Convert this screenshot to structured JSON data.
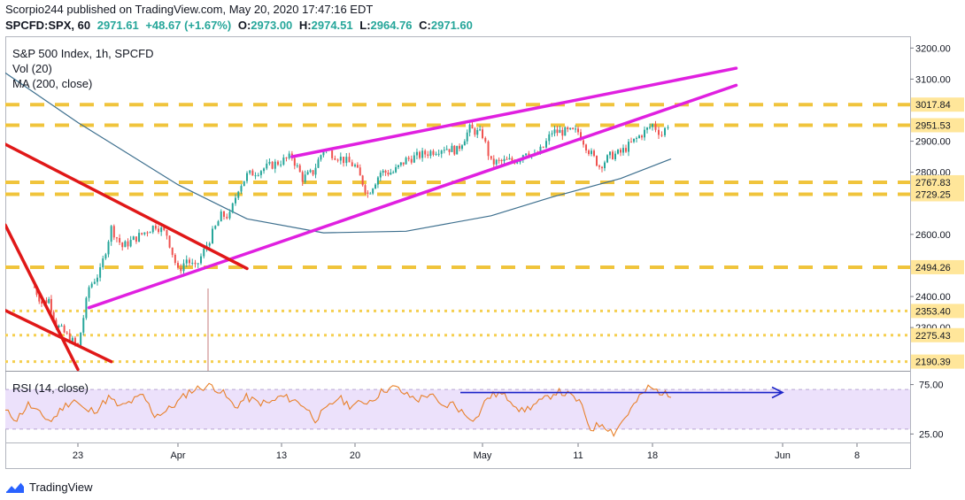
{
  "header": {
    "publisher_line": "Scorpio244 published on TradingView.com, May 20, 2020 17:47:16 EDT",
    "symbol": "SPCFD:SPX, 60",
    "last": "2971.61",
    "change": "+48.67 (+1.67%)",
    "open_label": "O:",
    "open": "2973.00",
    "high_label": "H:",
    "high": "2974.51",
    "low_label": "L:",
    "low": "2964.76",
    "close_label": "C:",
    "close": "2971.60"
  },
  "legend": {
    "title": "S&P 500 Index, 1h, SPCFD",
    "vol": "Vol (20)",
    "ma": "MA (200, close)",
    "rsi": "RSI (14, close)"
  },
  "footer": {
    "brand": "TradingView"
  },
  "colors": {
    "price_up": "#26a69a",
    "price_down": "#ef5350",
    "ma": "#3d6f8e",
    "channel": "#e020e0",
    "wedge": "#e01818",
    "level_dash": "#f0c43c",
    "level_dot": "#f5cf50",
    "rsi_line": "#e8802a",
    "rsi_band": "#ece1fb",
    "rsi_arrow": "#1a22c8"
  },
  "chart_data": {
    "type": "line",
    "title": "S&P 500 Index, 1h, SPCFD",
    "y_axis_ticks": [
      "3200.00",
      "3100.00",
      "2900.00",
      "2800.00",
      "2600.00",
      "2400.00",
      "2300.00"
    ],
    "x_axis_ticks": [
      "23",
      "Apr",
      "13",
      "20",
      "May",
      "11",
      "18",
      "Jun",
      "8"
    ],
    "ylim": [
      2175,
      3235
    ],
    "level_labels": [
      {
        "value": 3017.84,
        "label": "3017.84",
        "style": "dash"
      },
      {
        "value": 2951.53,
        "label": "2951.53",
        "style": "dash"
      },
      {
        "value": 2767.83,
        "label": "2767.83",
        "style": "dash"
      },
      {
        "value": 2729.25,
        "label": "2729.25",
        "style": "dash"
      },
      {
        "value": 2494.26,
        "label": "2494.26",
        "style": "dash"
      },
      {
        "value": 2353.4,
        "label": "2353.40",
        "style": "dot"
      },
      {
        "value": 2275.43,
        "label": "2275.43",
        "style": "dot"
      },
      {
        "value": 2190.39,
        "label": "2190.39",
        "style": "dot"
      }
    ],
    "price_series": [
      [
        "Mar 17",
        2430
      ],
      [
        "Mar 18",
        2380
      ],
      [
        "Mar 19",
        2390
      ],
      [
        "Mar 20",
        2310
      ],
      [
        "Mar 23",
        2237
      ],
      [
        "Mar 24",
        2430
      ],
      [
        "Mar 25",
        2480
      ],
      [
        "Mar 26",
        2620
      ],
      [
        "Mar 27",
        2560
      ],
      [
        "Mar 30",
        2630
      ],
      [
        "Mar 31",
        2600
      ],
      [
        "Apr 1",
        2480
      ],
      [
        "Apr 2",
        2520
      ],
      [
        "Apr 3",
        2490
      ],
      [
        "Apr 6",
        2660
      ],
      [
        "Apr 7",
        2660
      ],
      [
        "Apr 8",
        2750
      ],
      [
        "Apr 9",
        2790
      ],
      [
        "Apr 14",
        2850
      ],
      [
        "Apr 15",
        2780
      ],
      [
        "Apr 16",
        2800
      ],
      [
        "Apr 17",
        2875
      ],
      [
        "Apr 20",
        2820
      ],
      [
        "Apr 21",
        2730
      ],
      [
        "Apr 22",
        2800
      ],
      [
        "Apr 23",
        2800
      ],
      [
        "Apr 24",
        2840
      ],
      [
        "Apr 27",
        2880
      ],
      [
        "Apr 28",
        2870
      ],
      [
        "Apr 29",
        2940
      ],
      [
        "Apr 30",
        2920
      ],
      [
        "May 1",
        2830
      ],
      [
        "May 4",
        2840
      ],
      [
        "May 5",
        2870
      ],
      [
        "May 6",
        2850
      ],
      [
        "May 7",
        2880
      ],
      [
        "May 8",
        2930
      ],
      [
        "May 11",
        2930
      ],
      [
        "May 12",
        2870
      ],
      [
        "May 13",
        2820
      ],
      [
        "May 14",
        2852
      ],
      [
        "May 15",
        2863
      ],
      [
        "May 18",
        2953
      ],
      [
        "May 19",
        2922
      ],
      [
        "May 20",
        2971.6
      ]
    ],
    "ma200_series": [
      [
        "Mar 13",
        3120
      ],
      [
        "Mar 23",
        2960
      ],
      [
        "Apr 1",
        2760
      ],
      [
        "Apr 9",
        2650
      ],
      [
        "Apr 17",
        2605
      ],
      [
        "Apr 24",
        2610
      ],
      [
        "May 1",
        2660
      ],
      [
        "May 8",
        2720
      ],
      [
        "May 15",
        2780
      ],
      [
        "May 20",
        2843
      ]
    ],
    "trendlines": [
      {
        "name": "channel-upper",
        "from": [
          "Apr 14",
          2850
        ],
        "to": [
          "May 27",
          3135
        ]
      },
      {
        "name": "channel-lower",
        "from": [
          "Mar 24",
          2364
        ],
        "to": [
          "May 27",
          3080
        ]
      },
      {
        "name": "wedge-upper",
        "from": [
          "Mar 13",
          2890
        ],
        "to": [
          "Apr 9",
          2490
        ]
      },
      {
        "name": "wedge-lower",
        "from": [
          "Mar 13",
          2630
        ],
        "to": [
          "Mar 23",
          2165
        ]
      },
      {
        "name": "wedge-inner",
        "from": [
          "Mar 13",
          2355
        ],
        "to": [
          "Mar 26",
          2190
        ]
      }
    ],
    "rsi": {
      "label": "RSI (14, close)",
      "y_ticks": [
        "75.00",
        "25.00"
      ],
      "band": [
        30,
        70
      ],
      "arrow_level": 67,
      "values": [
        48,
        40,
        55,
        45,
        38,
        52,
        60,
        48,
        50,
        62,
        52,
        58,
        64,
        44,
        48,
        57,
        68,
        72,
        74,
        66,
        52,
        62,
        57,
        56,
        63,
        60,
        54,
        40,
        50,
        62,
        54,
        56,
        60,
        70,
        72,
        64,
        60,
        66,
        52,
        56,
        45,
        40,
        62,
        66,
        60,
        48,
        54,
        60,
        68,
        65,
        58,
        30,
        36,
        26,
        42,
        58,
        72,
        68,
        62
      ]
    }
  }
}
